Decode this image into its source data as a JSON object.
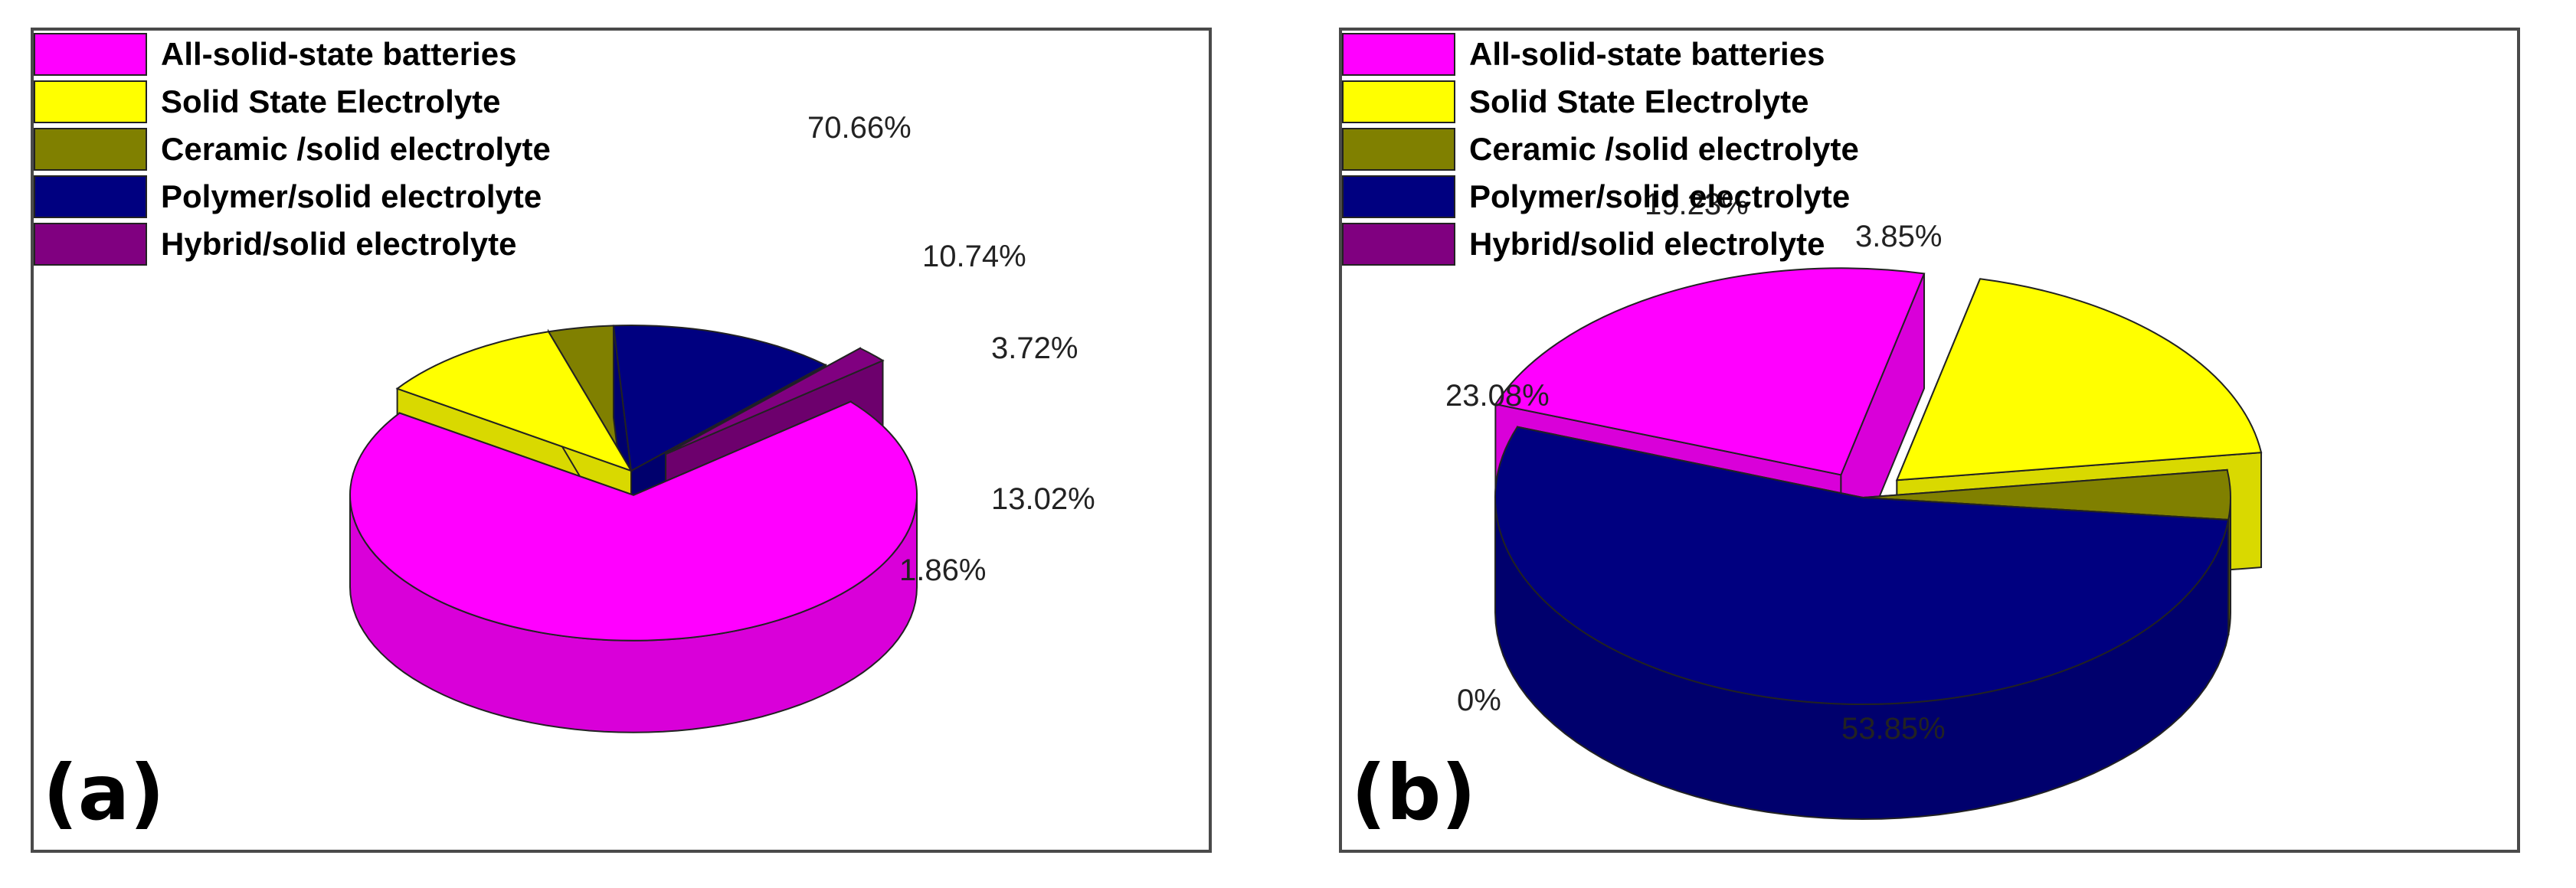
{
  "legend": [
    {
      "label": "All-solid-state batteries",
      "color": "#ff00ff"
    },
    {
      "label": "Solid State Electrolyte",
      "color": "#ffff00"
    },
    {
      "label": "Ceramic /solid electrolyte",
      "color": "#808000"
    },
    {
      "label": "Polymer/solid electrolyte",
      "color": "#000080"
    },
    {
      "label": "Hybrid/solid electrolyte",
      "color": "#800080"
    }
  ],
  "chart_data": [
    {
      "type": "pie",
      "panel_label": "(a)",
      "categories": [
        "All-solid-state batteries",
        "Solid State Electrolyte",
        "Ceramic /solid electrolyte",
        "Polymer/solid electrolyte",
        "Hybrid/solid electrolyte"
      ],
      "values": [
        70.66,
        10.74,
        3.72,
        13.02,
        1.86
      ],
      "labels": [
        "70.66%",
        "10.74%",
        "3.72%",
        "13.02%",
        "1.86%"
      ],
      "exploded": [
        "All-solid-state batteries",
        "Hybrid/solid electrolyte"
      ],
      "three_d": true,
      "legend_position": "top-left"
    },
    {
      "type": "pie",
      "panel_label": "(b)",
      "categories": [
        "All-solid-state batteries",
        "Solid State Electrolyte",
        "Ceramic /solid electrolyte",
        "Polymer/solid electrolyte",
        "Hybrid/solid electrolyte"
      ],
      "values": [
        23.08,
        19.23,
        3.85,
        53.85,
        0
      ],
      "labels": [
        "23.08%",
        "19.23%",
        "3.85%",
        "53.85%",
        "0%"
      ],
      "exploded": [
        "All-solid-state batteries",
        "Solid State Electrolyte"
      ],
      "three_d": true,
      "legend_position": "top-left"
    }
  ]
}
